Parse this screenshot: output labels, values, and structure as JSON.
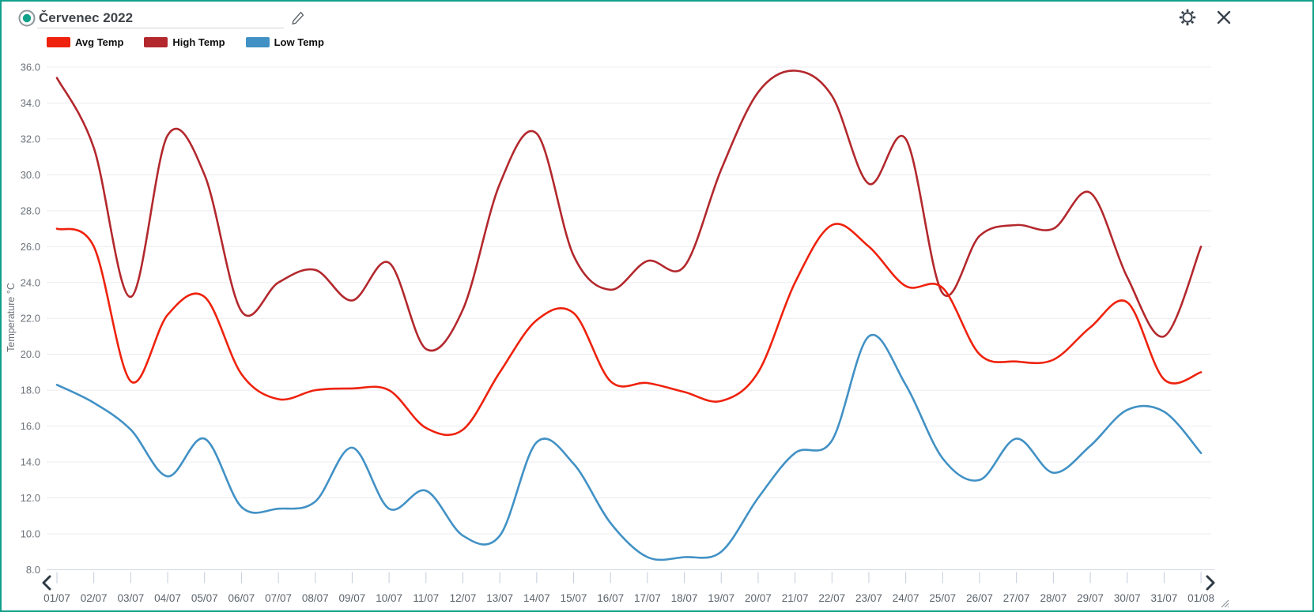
{
  "header": {
    "title_value": "Červenec 2022"
  },
  "icons": {
    "radio": "radio-selected-icon",
    "edit": "pencil-icon",
    "settings": "gear-icon",
    "close": "close-icon",
    "nav_left": "chevron-left-icon",
    "nav_right": "chevron-right-icon",
    "resize": "resize-corner-icon"
  },
  "colors": {
    "frame": "#12a18a",
    "avg": "#ee220d",
    "high": "#b3282d",
    "low": "#4191c5",
    "gridline": "#ececf0",
    "axis_line": "#d2d8e0",
    "tick": "#c3cbdb",
    "axis_text": "#6b7178",
    "icon_dark": "#39434d"
  },
  "legend": {
    "items": [
      {
        "label": "Avg Temp",
        "series": "avg"
      },
      {
        "label": "High Temp",
        "series": "high"
      },
      {
        "label": "Low Temp",
        "series": "low"
      }
    ]
  },
  "chart_data": {
    "type": "line",
    "title": "Červenec 2022",
    "xlabel": "",
    "ylabel": "Temperature °C",
    "ylim": [
      8,
      36
    ],
    "grid": "horizontal",
    "legend_position": "top-left",
    "smoothing": true,
    "yticks": [
      "36.0",
      "34.0",
      "32.0",
      "30.0",
      "28.0",
      "26.0",
      "24.0",
      "22.0",
      "20.0",
      "18.0",
      "16.0",
      "14.0",
      "12.0",
      "10.0",
      "8.0"
    ],
    "categories": [
      "01/07",
      "02/07",
      "03/07",
      "04/07",
      "05/07",
      "06/07",
      "07/07",
      "08/07",
      "09/07",
      "10/07",
      "11/07",
      "12/07",
      "13/07",
      "14/07",
      "15/07",
      "16/07",
      "17/07",
      "18/07",
      "19/07",
      "20/07",
      "21/07",
      "22/07",
      "23/07",
      "24/07",
      "25/07",
      "26/07",
      "27/07",
      "28/07",
      "29/07",
      "30/07",
      "31/07",
      "01/08"
    ],
    "series": [
      {
        "name": "High Temp",
        "color": "#b3282d",
        "values": [
          35.4,
          31.5,
          23.2,
          32.2,
          30.0,
          22.4,
          24.0,
          24.7,
          23.0,
          25.1,
          20.3,
          22.5,
          29.5,
          32.3,
          25.5,
          23.6,
          25.2,
          24.9,
          30.3,
          34.6,
          35.8,
          34.4,
          29.5,
          32.0,
          23.4,
          26.6,
          27.2,
          27.0,
          29.0,
          24.3,
          21.0,
          26.0
        ]
      },
      {
        "name": "Avg Temp",
        "color": "#ee220d",
        "values": [
          27.0,
          26.0,
          18.5,
          22.2,
          23.2,
          18.9,
          17.5,
          18.0,
          18.1,
          18.0,
          15.9,
          15.8,
          19.0,
          21.9,
          22.3,
          18.5,
          18.4,
          17.9,
          17.4,
          19.0,
          24.0,
          27.2,
          26.0,
          23.8,
          23.7,
          20.0,
          19.6,
          19.7,
          21.5,
          22.9,
          18.6,
          19.0
        ]
      },
      {
        "name": "Low Temp",
        "color": "#4191c5",
        "values": [
          18.3,
          17.3,
          15.8,
          13.2,
          15.3,
          11.5,
          11.4,
          11.8,
          14.8,
          11.4,
          12.4,
          9.9,
          9.9,
          15.1,
          13.9,
          10.6,
          8.7,
          8.7,
          9.0,
          12.0,
          14.5,
          15.2,
          21.0,
          18.3,
          14.2,
          13.0,
          15.3,
          13.4,
          14.9,
          16.9,
          16.8,
          14.5
        ]
      }
    ]
  }
}
